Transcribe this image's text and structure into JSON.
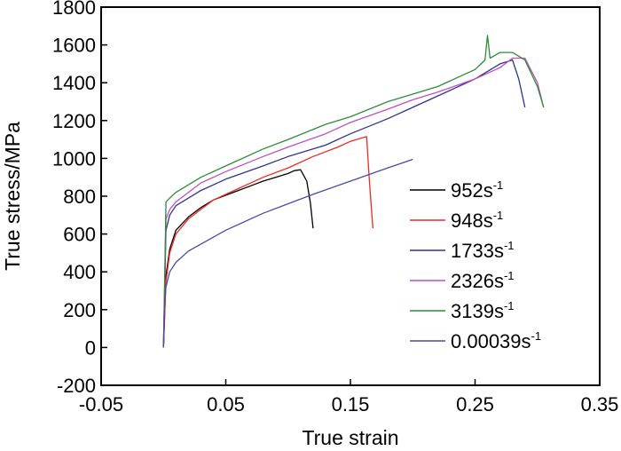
{
  "chart_data": {
    "type": "line",
    "title": "",
    "xlabel": "True strain",
    "ylabel": "True stress/MPa",
    "xlim": [
      -0.05,
      0.35
    ],
    "ylim": [
      -200,
      1800
    ],
    "x_ticks": [
      -0.05,
      0.05,
      0.15,
      0.25,
      0.35
    ],
    "x_tick_labels": [
      "-0.05",
      "0.05",
      "0.15",
      "0.25",
      "0.35"
    ],
    "y_ticks": [
      -200,
      0,
      200,
      400,
      600,
      800,
      1000,
      1200,
      1400,
      1600,
      1800
    ],
    "y_tick_labels": [
      "-200",
      "0",
      "200",
      "400",
      "600",
      "800",
      "1000",
      "1200",
      "1400",
      "1600",
      "1800"
    ],
    "grid": false,
    "legend_position": "right",
    "series": [
      {
        "name": "952s",
        "superscript": "-1",
        "color": "#000000",
        "x": [
          0,
          0.002,
          0.005,
          0.01,
          0.02,
          0.03,
          0.04,
          0.05,
          0.06,
          0.07,
          0.08,
          0.09,
          0.1,
          0.105,
          0.11,
          0.115,
          0.118,
          0.12
        ],
        "y": [
          0,
          380,
          520,
          620,
          690,
          740,
          780,
          805,
          830,
          855,
          880,
          900,
          920,
          935,
          940,
          880,
          760,
          630
        ]
      },
      {
        "name": "948s",
        "superscript": "-1",
        "color": "#ee2a24",
        "x": [
          0,
          0.002,
          0.005,
          0.01,
          0.02,
          0.03,
          0.04,
          0.06,
          0.08,
          0.1,
          0.12,
          0.14,
          0.15,
          0.16,
          0.163,
          0.165,
          0.168
        ],
        "y": [
          0,
          350,
          500,
          600,
          680,
          730,
          780,
          840,
          900,
          950,
          1010,
          1060,
          1090,
          1110,
          1115,
          900,
          630
        ]
      },
      {
        "name": "1733s",
        "superscript": "-1",
        "color": "#32328c",
        "x": [
          0,
          0.002,
          0.005,
          0.01,
          0.03,
          0.05,
          0.08,
          0.1,
          0.13,
          0.15,
          0.18,
          0.2,
          0.22,
          0.25,
          0.27,
          0.28,
          0.285,
          0.29
        ],
        "y": [
          0,
          620,
          700,
          750,
          830,
          890,
          960,
          1010,
          1070,
          1130,
          1210,
          1270,
          1330,
          1420,
          1500,
          1520,
          1420,
          1270
        ]
      },
      {
        "name": "2326s",
        "superscript": "-1",
        "color": "#c04ec0",
        "x": [
          0,
          0.002,
          0.005,
          0.01,
          0.03,
          0.05,
          0.08,
          0.1,
          0.13,
          0.15,
          0.18,
          0.2,
          0.22,
          0.25,
          0.27,
          0.28,
          0.29,
          0.3,
          0.305
        ],
        "y": [
          0,
          680,
          730,
          770,
          870,
          930,
          1010,
          1060,
          1130,
          1190,
          1260,
          1310,
          1350,
          1420,
          1480,
          1530,
          1530,
          1400,
          1270
        ]
      },
      {
        "name": "3139s",
        "superscript": "-1",
        "color": "#2e8b3a",
        "x": [
          0,
          0.002,
          0.005,
          0.01,
          0.03,
          0.05,
          0.08,
          0.1,
          0.13,
          0.15,
          0.18,
          0.2,
          0.22,
          0.25,
          0.258,
          0.26,
          0.262,
          0.27,
          0.28,
          0.29,
          0.3,
          0.305
        ],
        "y": [
          0,
          770,
          790,
          820,
          900,
          960,
          1050,
          1100,
          1180,
          1220,
          1300,
          1340,
          1380,
          1470,
          1520,
          1650,
          1530,
          1560,
          1560,
          1520,
          1380,
          1270
        ]
      },
      {
        "name": "0.00039s",
        "superscript": "-1",
        "color": "#4a4aa5",
        "x": [
          0,
          0.0005,
          0.001,
          0.002,
          0.005,
          0.01,
          0.02,
          0.05,
          0.08,
          0.1,
          0.12,
          0.15,
          0.18,
          0.2
        ],
        "y": [
          0,
          150,
          250,
          320,
          400,
          450,
          510,
          620,
          710,
          760,
          810,
          880,
          950,
          995
        ]
      }
    ]
  }
}
